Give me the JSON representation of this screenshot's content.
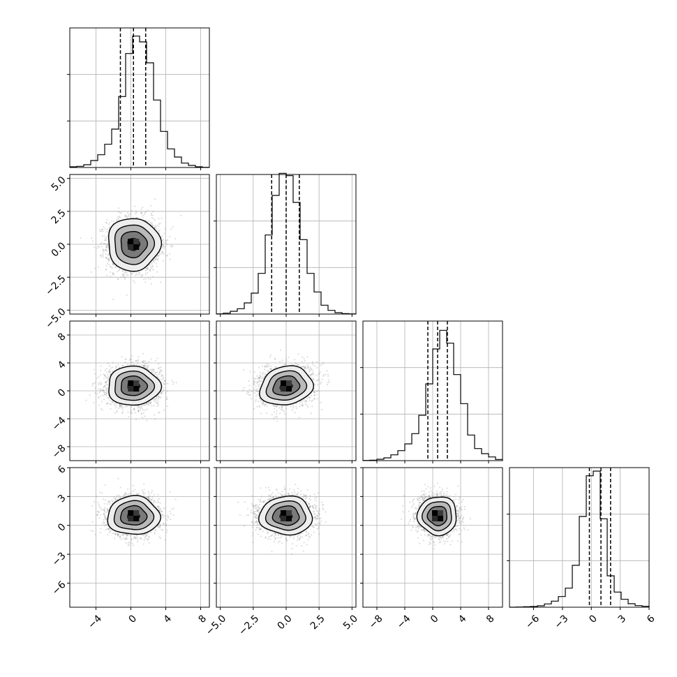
{
  "chart_data": {
    "type": "corner",
    "title": "",
    "grid": true,
    "variables": [
      {
        "range": [
          -7,
          9
        ],
        "ticks": [
          -4,
          0,
          4,
          8
        ],
        "tick_labels": [
          "−4",
          "0",
          "4",
          "8"
        ],
        "center": 0.3,
        "sd": 1.5,
        "quantiles": [
          -1.2,
          0.3,
          1.7
        ],
        "hist_values": [
          0.3,
          0.5,
          1.2,
          3,
          5.5,
          10,
          16.5,
          30.5,
          49,
          56.5,
          54,
          45,
          29,
          15.5,
          8,
          4.5,
          1.9,
          0.9,
          0.3,
          0.1
        ]
      },
      {
        "range": [
          -5.3,
          5.3
        ],
        "ticks": [
          -5,
          -2.5,
          0,
          2.5,
          5
        ],
        "tick_labels": [
          "−5.0",
          "−2.5",
          "0.0",
          "2.5",
          "5.0"
        ],
        "center": 0,
        "sd": 1.0,
        "quantiles": [
          -1.1,
          0,
          1.0
        ],
        "hist_values": [
          0.1,
          0.4,
          1.2,
          2.3,
          4.8,
          9,
          17.5,
          34,
          51,
          60.5,
          59.5,
          48,
          32,
          17.5,
          9.5,
          3.8,
          1.6,
          0.6,
          0.2,
          0.1
        ]
      },
      {
        "range": [
          -10,
          10
        ],
        "ticks": [
          -8,
          -4,
          0,
          4,
          8
        ],
        "tick_labels": [
          "−8",
          "−4",
          "0",
          "4",
          "8"
        ],
        "center": 0.7,
        "sd": 1.4,
        "quantiles": [
          -0.7,
          0.7,
          2.1
        ],
        "hist_values": [
          0.1,
          0.2,
          0.6,
          1.2,
          2.5,
          4.3,
          7.2,
          11.6,
          19.5,
          33,
          48,
          56,
          50.5,
          37,
          24.5,
          11,
          5.2,
          3,
          1.6,
          0.5
        ]
      },
      {
        "range": [
          -8.5,
          6
        ],
        "ticks": [
          -6,
          -3,
          0,
          3,
          6
        ],
        "tick_labels": [
          "−6",
          "−3",
          "0",
          "3",
          "6"
        ],
        "center": 1.0,
        "sd": 1.0,
        "quantiles": [
          -0.2,
          1.0,
          2.0
        ],
        "hist_values": [
          0,
          0.1,
          0.2,
          0.3,
          0.6,
          1.4,
          2.6,
          4.6,
          8.2,
          18,
          39,
          56.5,
          58.5,
          38,
          13.5,
          6.5,
          3.4,
          1.5,
          0.7,
          0.4
        ]
      }
    ],
    "hist_ylim": [
      0,
      60
    ],
    "hist_yticks": [
      20,
      40
    ],
    "correlations": [
      [
        1.0,
        0.0,
        0.0,
        0.0
      ],
      [
        0.0,
        1.0,
        0.15,
        0.0
      ],
      [
        0.0,
        0.15,
        1.0,
        0.0
      ],
      [
        0.0,
        0.0,
        0.0,
        1.0
      ]
    ],
    "n_samples_shown": 2400,
    "contour_levels_sigma": [
      0.5,
      1.0,
      1.5,
      2.0
    ]
  }
}
